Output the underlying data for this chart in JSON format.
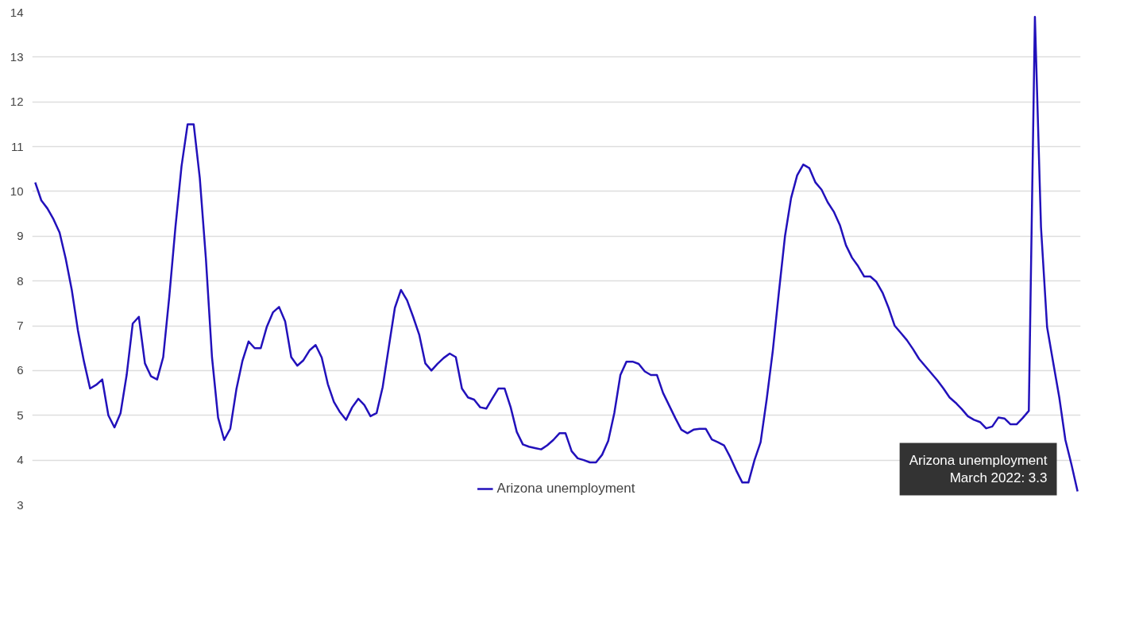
{
  "chart_data": {
    "type": "line",
    "tick_labels": "y",
    "grid": "y",
    "legend": "bottom",
    "line_style": "solid",
    "marker": "none",
    "categories": [
      null,
      null,
      null,
      null,
      null,
      null,
      null,
      null,
      null,
      null,
      null,
      null,
      null,
      null,
      null,
      null,
      null,
      null,
      null,
      null,
      null,
      null,
      null,
      null,
      null,
      null,
      null,
      null,
      null,
      null,
      null,
      null,
      null,
      null,
      null,
      null,
      null,
      null,
      null,
      null,
      null,
      null,
      null,
      null,
      null,
      null,
      null,
      null,
      null,
      null,
      null,
      null,
      null,
      null,
      null,
      null,
      null,
      null,
      null,
      null,
      null,
      null,
      null,
      null,
      null,
      null,
      null,
      null,
      null,
      null,
      null,
      null,
      null,
      null,
      null,
      null,
      null,
      null,
      null,
      null,
      null,
      null,
      null,
      null,
      null,
      null,
      null,
      null,
      null,
      null,
      null,
      null,
      null,
      null,
      null,
      null,
      null,
      null,
      null,
      null,
      null,
      null,
      null,
      null,
      null,
      null,
      null,
      null,
      null,
      null,
      null,
      null,
      null,
      null,
      null,
      null,
      null,
      null,
      null,
      null,
      null,
      null,
      null,
      null,
      null,
      null,
      null,
      null,
      null,
      null,
      null,
      null,
      null,
      null,
      null,
      null,
      null,
      null,
      null,
      null,
      null,
      null,
      null,
      null,
      null,
      null,
      null,
      null,
      null,
      null,
      null,
      null,
      null,
      null,
      null,
      null,
      null,
      null,
      null,
      null,
      null,
      null,
      null,
      null,
      null,
      null,
      null,
      null,
      null,
      null,
      null,
      null
    ],
    "ylim": [
      3,
      14
    ],
    "yticks": [
      3,
      4,
      5,
      6,
      7,
      8,
      9,
      10,
      11,
      12,
      13,
      14
    ],
    "annotations": [
      "Arizona unemployment\nMarch 2022: 3.3"
    ],
    "series": [
      {
        "name": "Arizona unemployment",
        "color": "#2211bb",
        "values": [
          10.2,
          9.8,
          9.62,
          9.38,
          9.08,
          8.5,
          7.8,
          6.9,
          6.2,
          5.6,
          5.68,
          5.8,
          5.0,
          4.73,
          5.05,
          5.9,
          7.05,
          7.2,
          6.16,
          5.87,
          5.8,
          6.3,
          7.66,
          9.2,
          10.56,
          11.5,
          11.5,
          10.3,
          8.5,
          6.3,
          4.95,
          4.45,
          4.7,
          5.58,
          6.22,
          6.65,
          6.5,
          6.5,
          6.98,
          7.3,
          7.42,
          7.1,
          6.3,
          6.11,
          6.23,
          6.45,
          6.57,
          6.29,
          5.7,
          5.3,
          5.07,
          4.9,
          5.18,
          5.37,
          5.23,
          4.98,
          5.05,
          5.63,
          6.52,
          7.4,
          7.8,
          7.57,
          7.2,
          6.8,
          6.16,
          6.0,
          6.15,
          6.28,
          6.38,
          6.3,
          5.6,
          5.4,
          5.35,
          5.18,
          5.15,
          5.38,
          5.6,
          5.6,
          5.18,
          4.63,
          4.35,
          4.3,
          4.27,
          4.24,
          4.33,
          4.45,
          4.6,
          4.6,
          4.2,
          4.04,
          4.0,
          3.95,
          3.95,
          4.12,
          4.43,
          5.05,
          5.9,
          6.2,
          6.2,
          6.15,
          5.98,
          5.9,
          5.9,
          5.5,
          5.22,
          4.94,
          4.68,
          4.6,
          4.68,
          4.7,
          4.7,
          4.46,
          4.4,
          4.33,
          4.07,
          3.77,
          3.5,
          3.5,
          4.0,
          4.4,
          5.36,
          6.44,
          7.75,
          9.0,
          9.85,
          10.36,
          10.6,
          10.52,
          10.2,
          10.04,
          9.76,
          9.55,
          9.25,
          8.8,
          8.52,
          8.33,
          8.1,
          8.1,
          7.98,
          7.74,
          7.4,
          7.0,
          6.84,
          6.68,
          6.48,
          6.26,
          6.1,
          5.94,
          5.78,
          5.6,
          5.4,
          5.28,
          5.14,
          4.98,
          4.9,
          4.85,
          4.71,
          4.75,
          4.95,
          4.93,
          4.8,
          4.8,
          4.94,
          5.1,
          13.9,
          9.2,
          6.97,
          6.18,
          5.4,
          4.45,
          3.9,
          3.3
        ]
      }
    ]
  }
}
